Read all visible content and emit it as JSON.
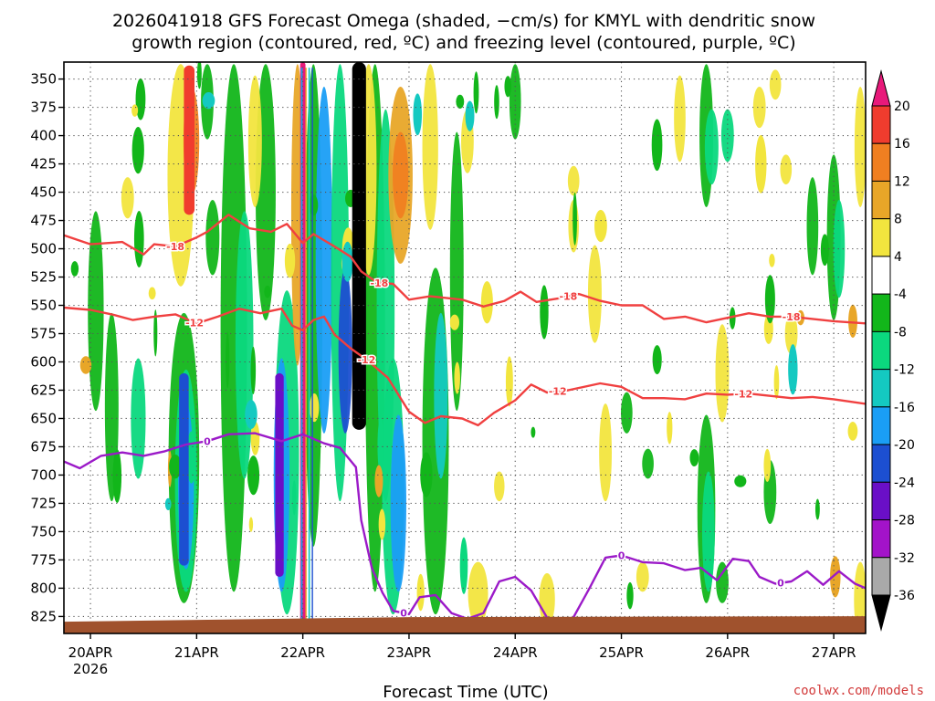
{
  "chart_data": {
    "type": "heatmap",
    "title_lines": [
      "2026041918 GFS Forecast Omega (shaded, −cm/s) for KMYL with dendritic snow",
      "growth region (contoured, red, ºC) and freezing level (contoured, purple, ºC)"
    ],
    "xlabel": "Forecast Time (UTC)",
    "x_ticks": [
      "20APR",
      "21APR",
      "22APR",
      "23APR",
      "24APR",
      "25APR",
      "26APR",
      "27APR"
    ],
    "x_sublabel": "2026",
    "x_range_days": [
      -0.25,
      7.3
    ],
    "y_ticks": [
      350,
      375,
      400,
      425,
      450,
      475,
      500,
      525,
      550,
      575,
      600,
      625,
      650,
      675,
      700,
      725,
      750,
      775,
      800,
      825
    ],
    "y_range_hpa": [
      335,
      840
    ],
    "colorbar": {
      "labels": [
        "20",
        "16",
        "12",
        "8",
        "4",
        "-4",
        "-8",
        "-12",
        "-16",
        "-20",
        "-24",
        "-28",
        "-32",
        "-36"
      ],
      "colors": [
        "#e8197a",
        "#f03c2e",
        "#f07f21",
        "#e8a628",
        "#f2e53e",
        "#ffffff",
        "#12b61a",
        "#0bd87e",
        "#14c9c1",
        "#1a9ef5",
        "#1c4fd1",
        "#6a0fc7",
        "#a313c9",
        "#a9a9a9",
        "#000000"
      ]
    },
    "contours": [
      {
        "name": "dgz-minus-18",
        "label": "-18",
        "color": "#f04040",
        "label_positions": [
          [
            0.8,
            0.7
          ],
          [
            2.72,
            0.6
          ],
          [
            4.5,
            0.55
          ],
          [
            6.6,
            0.48
          ]
        ],
        "points": [
          [
            -0.25,
            488
          ],
          [
            0.0,
            496
          ],
          [
            0.3,
            494
          ],
          [
            0.5,
            505
          ],
          [
            0.6,
            496
          ],
          [
            0.8,
            498
          ],
          [
            1.0,
            490
          ],
          [
            1.1,
            485
          ],
          [
            1.3,
            470
          ],
          [
            1.5,
            482
          ],
          [
            1.7,
            485
          ],
          [
            1.85,
            478
          ],
          [
            2.0,
            495
          ],
          [
            2.1,
            487
          ],
          [
            2.3,
            498
          ],
          [
            2.45,
            507
          ],
          [
            2.55,
            520
          ],
          [
            2.7,
            530
          ],
          [
            2.85,
            531
          ],
          [
            3.0,
            545
          ],
          [
            3.2,
            542
          ],
          [
            3.5,
            545
          ],
          [
            3.7,
            551
          ],
          [
            3.9,
            546
          ],
          [
            4.05,
            538
          ],
          [
            4.2,
            547
          ],
          [
            4.4,
            544
          ],
          [
            4.6,
            540
          ],
          [
            4.8,
            546
          ],
          [
            5.0,
            550
          ],
          [
            5.2,
            550
          ],
          [
            5.4,
            562
          ],
          [
            5.6,
            560
          ],
          [
            5.8,
            565
          ],
          [
            6.0,
            561
          ],
          [
            6.2,
            557
          ],
          [
            6.4,
            560
          ],
          [
            6.6,
            560
          ],
          [
            6.8,
            562
          ],
          [
            7.0,
            564
          ],
          [
            7.3,
            566
          ]
        ]
      },
      {
        "name": "dgz-minus-12",
        "label": "-12",
        "color": "#f04040",
        "label_positions": [
          [
            0.98,
            0.55
          ],
          [
            2.6,
            0.5
          ],
          [
            4.4,
            0.5
          ],
          [
            6.15,
            0.45
          ]
        ],
        "points": [
          [
            -0.25,
            552
          ],
          [
            0.0,
            554
          ],
          [
            0.2,
            558
          ],
          [
            0.4,
            563
          ],
          [
            0.6,
            560
          ],
          [
            0.8,
            558
          ],
          [
            1.0,
            566
          ],
          [
            1.2,
            560
          ],
          [
            1.4,
            553
          ],
          [
            1.6,
            557
          ],
          [
            1.8,
            553
          ],
          [
            1.9,
            568
          ],
          [
            2.0,
            572
          ],
          [
            2.1,
            563
          ],
          [
            2.2,
            560
          ],
          [
            2.3,
            576
          ],
          [
            2.45,
            588
          ],
          [
            2.6,
            598
          ],
          [
            2.8,
            614
          ],
          [
            3.0,
            644
          ],
          [
            3.15,
            654
          ],
          [
            3.3,
            648
          ],
          [
            3.5,
            650
          ],
          [
            3.65,
            656
          ],
          [
            3.8,
            645
          ],
          [
            4.0,
            634
          ],
          [
            4.15,
            620
          ],
          [
            4.3,
            627
          ],
          [
            4.5,
            625
          ],
          [
            4.8,
            619
          ],
          [
            5.0,
            622
          ],
          [
            5.2,
            632
          ],
          [
            5.4,
            632
          ],
          [
            5.6,
            633
          ],
          [
            5.8,
            628
          ],
          [
            6.0,
            629
          ],
          [
            6.2,
            628
          ],
          [
            6.4,
            630
          ],
          [
            6.6,
            632
          ],
          [
            6.8,
            631
          ],
          [
            7.0,
            633
          ],
          [
            7.3,
            637
          ]
        ]
      },
      {
        "name": "freezing-level-0",
        "label": "0",
        "color": "#9b1ac8",
        "label_positions": [
          [
            1.1,
            0.5
          ],
          [
            5.0,
            0.5
          ],
          [
            6.5,
            0.5
          ],
          [
            2.95,
            0.6
          ]
        ],
        "points": [
          [
            -0.25,
            688
          ],
          [
            -0.1,
            694
          ],
          [
            0.1,
            683
          ],
          [
            0.3,
            680
          ],
          [
            0.5,
            683
          ],
          [
            0.7,
            679
          ],
          [
            0.9,
            673
          ],
          [
            1.1,
            670
          ],
          [
            1.3,
            664
          ],
          [
            1.55,
            663
          ],
          [
            1.8,
            670
          ],
          [
            2.0,
            664
          ],
          [
            2.2,
            672
          ],
          [
            2.35,
            676
          ],
          [
            2.5,
            693
          ],
          [
            2.55,
            740
          ],
          [
            2.65,
            782
          ],
          [
            2.75,
            804
          ],
          [
            2.85,
            820
          ],
          [
            3.0,
            823
          ],
          [
            3.1,
            808
          ],
          [
            3.25,
            806
          ],
          [
            3.4,
            822
          ],
          [
            3.55,
            827
          ],
          [
            3.7,
            822
          ],
          [
            3.85,
            794
          ],
          [
            4.0,
            790
          ],
          [
            4.15,
            802
          ],
          [
            4.3,
            826
          ],
          [
            4.5,
            834
          ],
          [
            4.7,
            800
          ],
          [
            4.85,
            773
          ],
          [
            5.0,
            771
          ],
          [
            5.2,
            777
          ],
          [
            5.4,
            778
          ],
          [
            5.6,
            784
          ],
          [
            5.75,
            782
          ],
          [
            5.9,
            793
          ],
          [
            6.05,
            774
          ],
          [
            6.2,
            776
          ],
          [
            6.3,
            790
          ],
          [
            6.45,
            796
          ],
          [
            6.6,
            794
          ],
          [
            6.75,
            785
          ],
          [
            6.9,
            797
          ],
          [
            7.05,
            785
          ],
          [
            7.2,
            796
          ],
          [
            7.3,
            800
          ]
        ]
      }
    ],
    "omega_bands": [
      {
        "name": "dendritic-black-core",
        "day": 2.53,
        "width": 0.13,
        "p_top": 335,
        "p_bot": 660,
        "color": "#000000"
      },
      {
        "name": "band-21apr-red",
        "day": 0.93,
        "width": 0.1,
        "p_top": 338,
        "p_bot": 470,
        "color": "#f03c2e"
      },
      {
        "name": "band-22apr-magenta",
        "day": 2.0,
        "width": 0.05,
        "p_top": 335,
        "p_bot": 830,
        "color": "#e8197a"
      },
      {
        "name": "band-22apr-purple",
        "day": 1.78,
        "width": 0.08,
        "p_top": 610,
        "p_bot": 790,
        "color": "#6a0fc7"
      },
      {
        "name": "band-21apr-blue",
        "day": 0.88,
        "width": 0.09,
        "p_top": 610,
        "p_bot": 780,
        "color": "#1c4fd1"
      }
    ],
    "ground_pressure_hpa": 828
  },
  "footer": {
    "credit": "coolwx.com/models"
  }
}
